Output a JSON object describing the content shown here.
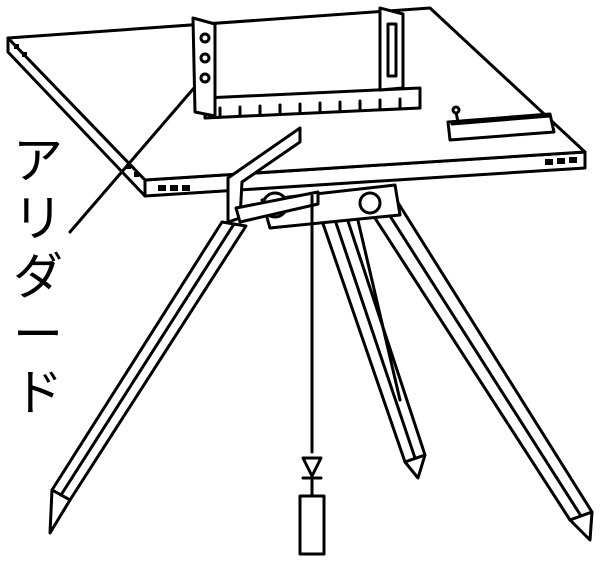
{
  "figure": {
    "label": "アリダード",
    "colors": {
      "ink": "#000000",
      "paper": "#ffffff"
    },
    "parts": [
      "plane-table",
      "alidade",
      "tripod",
      "plumb-bob",
      "level-vial",
      "centering-arm"
    ]
  }
}
